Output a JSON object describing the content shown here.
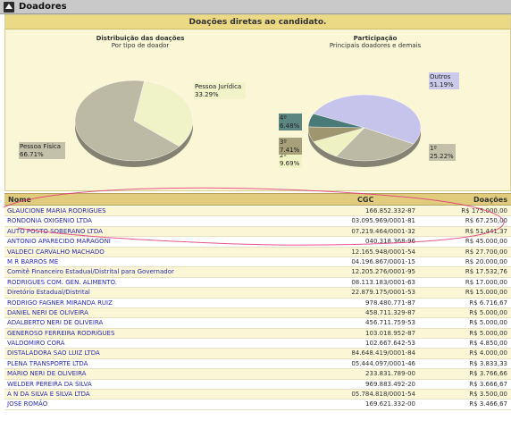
{
  "window": {
    "title": "Doadores"
  },
  "panel": {
    "title": "Doações diretas ao candidato.",
    "left_chart": {
      "title": "Distribuição das doações",
      "subtitle": "Por tipo de doador"
    },
    "right_chart": {
      "title": "Participação",
      "subtitle": "Principais doadores e demais"
    }
  },
  "chart_data": [
    {
      "type": "pie",
      "title": "Distribuição das doações",
      "subtitle": "Por tipo de doador",
      "slices": [
        {
          "label": "Pessoa Jurídica",
          "value": 33.29,
          "display": "33.29%",
          "color": "#f0f2c8"
        },
        {
          "label": "Pessoa Física",
          "value": 66.71,
          "display": "66.71%",
          "color": "#bcbaa4"
        }
      ]
    },
    {
      "type": "pie",
      "title": "Participação",
      "subtitle": "Principais doadores e demais",
      "slices": [
        {
          "label": "Outros",
          "value": 51.19,
          "display": "51.19%",
          "color": "#c7c4ec"
        },
        {
          "label": "1º",
          "value": 25.22,
          "display": "25.22%",
          "color": "#bcbaa4"
        },
        {
          "label": "2º",
          "value": 9.69,
          "display": "9.69%",
          "color": "#eef2c2"
        },
        {
          "label": "3º",
          "value": 7.41,
          "display": "7.41%",
          "color": "#9f9670"
        },
        {
          "label": "4º",
          "value": 6.48,
          "display": "6.48%",
          "color": "#4a7a78"
        }
      ]
    }
  ],
  "table": {
    "headers": {
      "name": "Nome",
      "cgc": "CGC",
      "value": "Doações"
    },
    "rows": [
      {
        "name": "GLAUCIONE MARIA RODRIGUES",
        "cgc": "166.852.332-87",
        "value": "R$ 175.000,00"
      },
      {
        "name": "RONDONIA OXIGENIO LTDA",
        "cgc": "03.095.969/0001-81",
        "value": "R$ 67.250,00"
      },
      {
        "name": "AUTO POSTO SOBERANO LTDA",
        "cgc": "07.219.464/0001-32",
        "value": "R$ 51.441,37"
      },
      {
        "name": "ANTONIO APARECIDO MARAGONI",
        "cgc": "040.318.368-96",
        "value": "R$ 45.000,00"
      },
      {
        "name": "VALDECI CARVALHO MACHADO",
        "cgc": "12.165.948/0001-54",
        "value": "R$ 27.700,00"
      },
      {
        "name": "M R BARROS ME",
        "cgc": "04.196.867/0001-15",
        "value": "R$ 20.000,00"
      },
      {
        "name": "Comitê Financeiro Estadual/Distrital para Governador",
        "cgc": "12.205.276/0001-95",
        "value": "R$ 17.532,76"
      },
      {
        "name": "RODRIGUES COM. GEN. ALIMENTO.",
        "cgc": "08.113.183/0001-63",
        "value": "R$ 17.000,00"
      },
      {
        "name": "Diretório Estadual/Distrital",
        "cgc": "22.879.175/0001-53",
        "value": "R$ 15.000,00"
      },
      {
        "name": "RODRIGO FAGNER MIRANDA RUIZ",
        "cgc": "978.480.771-87",
        "value": "R$ 6.716,67"
      },
      {
        "name": "DANIEL NERI DE OLIVEIRA",
        "cgc": "458.711.329-87",
        "value": "R$ 5.000,00"
      },
      {
        "name": "ADALBERTO NERI DE OLIVEIRA",
        "cgc": "456.711.759-53",
        "value": "R$ 5.000,00"
      },
      {
        "name": "GENEROSO FERREIRA RODRIGUES",
        "cgc": "103.018.952-87",
        "value": "R$ 5.000,00"
      },
      {
        "name": "VALDOMIRO CORÁ",
        "cgc": "102.667.642-53",
        "value": "R$ 4.850,00"
      },
      {
        "name": "DISTALADORA SAO LUIZ LTDA",
        "cgc": "84.648.419/0001-84",
        "value": "R$ 4.000,00"
      },
      {
        "name": "PLENA TRANSPORTE LTDA",
        "cgc": "05.444.097/0001-46",
        "value": "R$ 3.833,33"
      },
      {
        "name": "MÁRIO NERI DE OLIVEIRA",
        "cgc": "233.831.789-00",
        "value": "R$ 3.766,66"
      },
      {
        "name": "WELDER PEREIRA DA SILVA",
        "cgc": "969.883.492-20",
        "value": "R$ 3.666,67"
      },
      {
        "name": "A N DA SILVA E SILVA LTDA",
        "cgc": "05.784.818/0001-54",
        "value": "R$ 3.500,00"
      },
      {
        "name": "JOSE ROMÃO",
        "cgc": "169.621.332-00",
        "value": "R$ 3.466,67"
      }
    ]
  }
}
